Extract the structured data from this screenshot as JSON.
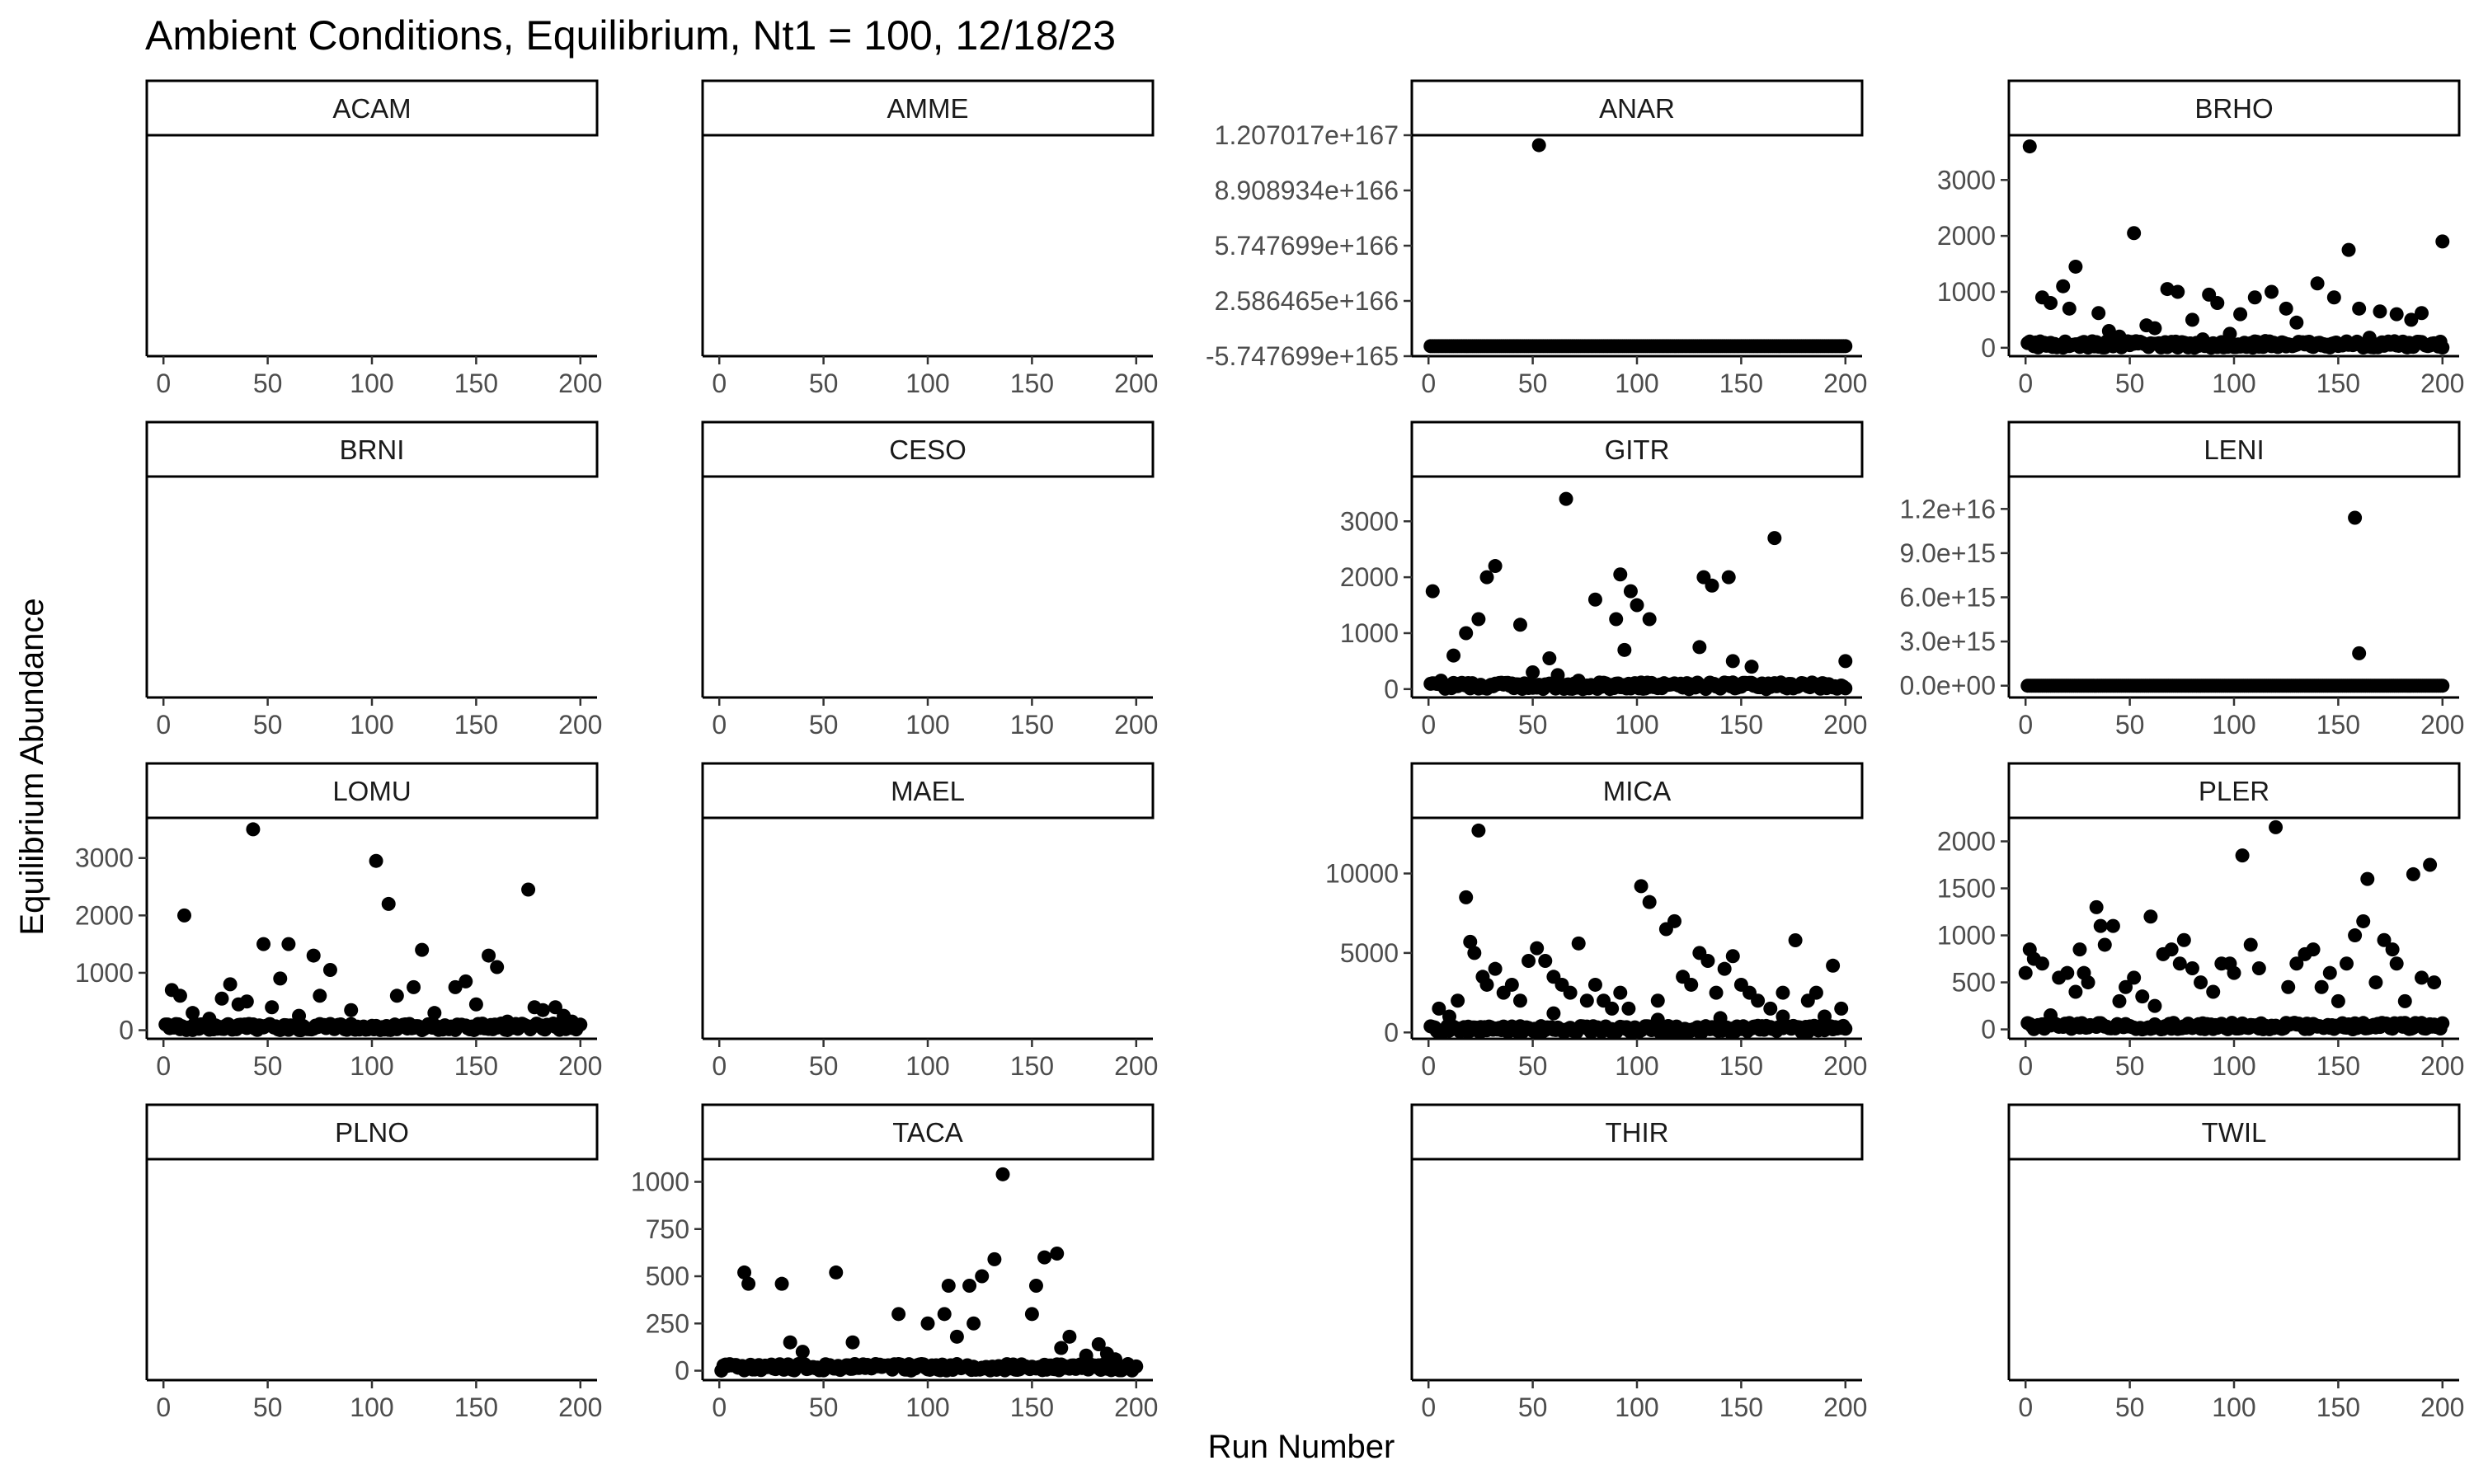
{
  "chart_data": {
    "type": "scatter",
    "title": "Ambient Conditions, Equilibrium, Nt1 = 100, 12/18/23",
    "xlabel": "Run Number",
    "ylabel": "Equilibrium Abundance",
    "xlim": [
      -8,
      208
    ],
    "x_ticks": [
      0,
      50,
      100,
      150,
      200
    ],
    "x_tick_labels": [
      "0",
      "50",
      "100",
      "150",
      "200"
    ],
    "layout": "4x4 facet grid, free y scales",
    "panels": [
      {
        "id": "ACAM",
        "label": "ACAM",
        "row": 0,
        "col": 0,
        "empty": true
      },
      {
        "id": "AMME",
        "label": "AMME",
        "row": 0,
        "col": 1,
        "empty": true
      },
      {
        "id": "ANAR",
        "label": "ANAR",
        "row": 0,
        "col": 2,
        "empty": false,
        "ylim": [
          -5.747699e+165,
          1.207017e+167
        ],
        "y_ticks": [
          -5.747699e+165,
          2.586465e+166,
          5.747699e+166,
          8.908934e+166,
          1.207017e+167
        ],
        "y_tick_labels": [
          "-5.747699e+165",
          "2.586465e+166",
          "5.747699e+166",
          "8.908934e+166",
          "1.207017e+167"
        ],
        "baseline": 0,
        "outliers": [
          [
            53,
            1.15e+167
          ]
        ]
      },
      {
        "id": "BRHO",
        "label": "BRHO",
        "row": 0,
        "col": 3,
        "empty": false,
        "ylim": [
          -150,
          3800
        ],
        "y_ticks": [
          0,
          1000,
          2000,
          3000
        ],
        "y_tick_labels": [
          "0",
          "1000",
          "2000",
          "3000"
        ],
        "baseline": 0,
        "outliers": [
          [
            2,
            3600
          ],
          [
            8,
            900
          ],
          [
            12,
            800
          ],
          [
            18,
            1100
          ],
          [
            21,
            700
          ],
          [
            24,
            1450
          ],
          [
            35,
            620
          ],
          [
            40,
            300
          ],
          [
            52,
            2050
          ],
          [
            58,
            400
          ],
          [
            62,
            350
          ],
          [
            68,
            1050
          ],
          [
            73,
            1000
          ],
          [
            80,
            500
          ],
          [
            88,
            950
          ],
          [
            92,
            800
          ],
          [
            98,
            250
          ],
          [
            103,
            600
          ],
          [
            110,
            900
          ],
          [
            118,
            1000
          ],
          [
            125,
            700
          ],
          [
            130,
            450
          ],
          [
            140,
            1150
          ],
          [
            148,
            900
          ],
          [
            155,
            1750
          ],
          [
            160,
            700
          ],
          [
            170,
            650
          ],
          [
            178,
            600
          ],
          [
            185,
            500
          ],
          [
            190,
            620
          ],
          [
            200,
            1900
          ],
          [
            45,
            200
          ],
          [
            85,
            150
          ],
          [
            115,
            120
          ],
          [
            165,
            180
          ]
        ]
      },
      {
        "id": "BRNI",
        "label": "BRNI",
        "row": 1,
        "col": 0,
        "empty": true
      },
      {
        "id": "CESO",
        "label": "CESO",
        "row": 1,
        "col": 1,
        "empty": true
      },
      {
        "id": "GITR",
        "label": "GITR",
        "row": 1,
        "col": 2,
        "empty": false,
        "ylim": [
          -150,
          3800
        ],
        "y_ticks": [
          0,
          1000,
          2000,
          3000
        ],
        "y_tick_labels": [
          "0",
          "1000",
          "2000",
          "3000"
        ],
        "baseline": 0,
        "outliers": [
          [
            2,
            1750
          ],
          [
            6,
            150
          ],
          [
            12,
            600
          ],
          [
            18,
            1000
          ],
          [
            24,
            1250
          ],
          [
            28,
            2000
          ],
          [
            32,
            2200
          ],
          [
            44,
            1150
          ],
          [
            50,
            300
          ],
          [
            58,
            550
          ],
          [
            62,
            250
          ],
          [
            66,
            3400
          ],
          [
            72,
            150
          ],
          [
            80,
            1600
          ],
          [
            90,
            1250
          ],
          [
            92,
            2050
          ],
          [
            94,
            700
          ],
          [
            97,
            1750
          ],
          [
            100,
            1500
          ],
          [
            106,
            1250
          ],
          [
            130,
            750
          ],
          [
            132,
            2000
          ],
          [
            136,
            1850
          ],
          [
            144,
            2000
          ],
          [
            146,
            500
          ],
          [
            155,
            400
          ],
          [
            166,
            2700
          ],
          [
            200,
            500
          ],
          [
            40,
            100
          ],
          [
            120,
            80
          ]
        ]
      },
      {
        "id": "LENI",
        "label": "LENI",
        "row": 1,
        "col": 3,
        "empty": false,
        "ylim": [
          -800000000000000.0,
          1.42e+16
        ],
        "y_ticks": [
          0,
          3000000000000000.0,
          6000000000000000.0,
          9000000000000000.0,
          1.2e+16
        ],
        "y_tick_labels": [
          "0.0e+00",
          "3.0e+15",
          "6.0e+15",
          "9.0e+15",
          "1.2e+16"
        ],
        "baseline": 0,
        "outliers": [
          [
            158,
            1.14e+16
          ],
          [
            160,
            2200000000000000.0
          ]
        ]
      },
      {
        "id": "LOMU",
        "label": "LOMU",
        "row": 2,
        "col": 0,
        "empty": false,
        "ylim": [
          -150,
          3700
        ],
        "y_ticks": [
          0,
          1000,
          2000,
          3000
        ],
        "y_tick_labels": [
          "0",
          "1000",
          "2000",
          "3000"
        ],
        "baseline": 0,
        "outliers": [
          [
            4,
            700
          ],
          [
            8,
            600
          ],
          [
            10,
            2000
          ],
          [
            14,
            300
          ],
          [
            22,
            200
          ],
          [
            28,
            550
          ],
          [
            32,
            800
          ],
          [
            36,
            450
          ],
          [
            40,
            500
          ],
          [
            43,
            3500
          ],
          [
            48,
            1500
          ],
          [
            52,
            400
          ],
          [
            56,
            900
          ],
          [
            60,
            1500
          ],
          [
            65,
            250
          ],
          [
            72,
            1300
          ],
          [
            75,
            600
          ],
          [
            80,
            1050
          ],
          [
            90,
            350
          ],
          [
            102,
            2950
          ],
          [
            108,
            2200
          ],
          [
            112,
            600
          ],
          [
            120,
            750
          ],
          [
            124,
            1400
          ],
          [
            130,
            300
          ],
          [
            140,
            750
          ],
          [
            145,
            850
          ],
          [
            150,
            450
          ],
          [
            156,
            1300
          ],
          [
            160,
            1100
          ],
          [
            165,
            150
          ],
          [
            175,
            2450
          ],
          [
            178,
            400
          ],
          [
            182,
            350
          ],
          [
            188,
            400
          ],
          [
            192,
            250
          ],
          [
            196,
            150
          ]
        ]
      },
      {
        "id": "MAEL",
        "label": "MAEL",
        "row": 2,
        "col": 1,
        "empty": true
      },
      {
        "id": "MICA",
        "label": "MICA",
        "row": 2,
        "col": 2,
        "empty": false,
        "ylim": [
          -400,
          13500
        ],
        "y_ticks": [
          0,
          5000,
          10000
        ],
        "y_tick_labels": [
          "0",
          "5000",
          "10000"
        ],
        "baseline": 0,
        "outliers": [
          [
            5,
            1500
          ],
          [
            10,
            1000
          ],
          [
            14,
            2000
          ],
          [
            18,
            8500
          ],
          [
            20,
            5700
          ],
          [
            22,
            5000
          ],
          [
            24,
            12700
          ],
          [
            26,
            3500
          ],
          [
            28,
            3000
          ],
          [
            32,
            4000
          ],
          [
            36,
            2500
          ],
          [
            40,
            3000
          ],
          [
            44,
            2000
          ],
          [
            48,
            4500
          ],
          [
            52,
            5300
          ],
          [
            56,
            4500
          ],
          [
            60,
            3500
          ],
          [
            64,
            3000
          ],
          [
            68,
            2500
          ],
          [
            72,
            5600
          ],
          [
            76,
            2000
          ],
          [
            80,
            3000
          ],
          [
            84,
            2000
          ],
          [
            88,
            1500
          ],
          [
            92,
            2500
          ],
          [
            96,
            1500
          ],
          [
            102,
            9200
          ],
          [
            106,
            8200
          ],
          [
            110,
            2000
          ],
          [
            114,
            6500
          ],
          [
            118,
            7000
          ],
          [
            122,
            3500
          ],
          [
            126,
            3000
          ],
          [
            130,
            5000
          ],
          [
            134,
            4500
          ],
          [
            138,
            2500
          ],
          [
            142,
            4000
          ],
          [
            146,
            4800
          ],
          [
            150,
            3000
          ],
          [
            154,
            2500
          ],
          [
            158,
            2000
          ],
          [
            164,
            1500
          ],
          [
            170,
            1000
          ],
          [
            176,
            5800
          ],
          [
            182,
            2000
          ],
          [
            186,
            2500
          ],
          [
            190,
            1000
          ],
          [
            194,
            4200
          ],
          [
            198,
            1500
          ],
          [
            60,
            1200
          ],
          [
            110,
            800
          ],
          [
            140,
            900
          ],
          [
            170,
            2500
          ]
        ]
      },
      {
        "id": "PLER",
        "label": "PLER",
        "row": 2,
        "col": 3,
        "empty": false,
        "ylim": [
          -100,
          2250
        ],
        "y_ticks": [
          0,
          500,
          1000,
          1500,
          2000
        ],
        "y_tick_labels": [
          "0",
          "500",
          "1000",
          "1500",
          "2000"
        ],
        "baseline": 0,
        "outliers": [
          [
            0,
            600
          ],
          [
            2,
            850
          ],
          [
            4,
            750
          ],
          [
            8,
            700
          ],
          [
            12,
            150
          ],
          [
            16,
            550
          ],
          [
            20,
            600
          ],
          [
            24,
            400
          ],
          [
            26,
            850
          ],
          [
            28,
            600
          ],
          [
            30,
            500
          ],
          [
            34,
            1300
          ],
          [
            36,
            1100
          ],
          [
            38,
            900
          ],
          [
            42,
            1100
          ],
          [
            45,
            300
          ],
          [
            48,
            450
          ],
          [
            52,
            550
          ],
          [
            56,
            350
          ],
          [
            60,
            1200
          ],
          [
            62,
            250
          ],
          [
            66,
            800
          ],
          [
            70,
            850
          ],
          [
            74,
            700
          ],
          [
            76,
            950
          ],
          [
            80,
            650
          ],
          [
            84,
            500
          ],
          [
            90,
            400
          ],
          [
            94,
            700
          ],
          [
            98,
            700
          ],
          [
            100,
            600
          ],
          [
            104,
            1850
          ],
          [
            108,
            900
          ],
          [
            112,
            650
          ],
          [
            120,
            2150
          ],
          [
            126,
            450
          ],
          [
            130,
            700
          ],
          [
            134,
            800
          ],
          [
            138,
            850
          ],
          [
            142,
            450
          ],
          [
            146,
            600
          ],
          [
            150,
            300
          ],
          [
            154,
            700
          ],
          [
            158,
            1000
          ],
          [
            162,
            1150
          ],
          [
            164,
            1600
          ],
          [
            168,
            500
          ],
          [
            172,
            950
          ],
          [
            176,
            850
          ],
          [
            178,
            700
          ],
          [
            182,
            300
          ],
          [
            186,
            1650
          ],
          [
            190,
            550
          ],
          [
            194,
            1750
          ],
          [
            196,
            500
          ]
        ]
      },
      {
        "id": "PLNO",
        "label": "PLNO",
        "row": 3,
        "col": 0,
        "empty": true
      },
      {
        "id": "TACA",
        "label": "TACA",
        "row": 3,
        "col": 1,
        "empty": false,
        "ylim": [
          -50,
          1120
        ],
        "y_ticks": [
          0,
          250,
          500,
          750,
          1000
        ],
        "y_tick_labels": [
          "0",
          "250",
          "500",
          "750",
          "1000"
        ],
        "baseline": 0,
        "outliers": [
          [
            12,
            520
          ],
          [
            14,
            460
          ],
          [
            30,
            460
          ],
          [
            34,
            150
          ],
          [
            40,
            100
          ],
          [
            56,
            520
          ],
          [
            64,
            150
          ],
          [
            86,
            300
          ],
          [
            100,
            250
          ],
          [
            108,
            300
          ],
          [
            110,
            450
          ],
          [
            114,
            180
          ],
          [
            120,
            450
          ],
          [
            122,
            250
          ],
          [
            126,
            500
          ],
          [
            132,
            590
          ],
          [
            136,
            1040
          ],
          [
            150,
            300
          ],
          [
            152,
            450
          ],
          [
            156,
            600
          ],
          [
            162,
            620
          ],
          [
            164,
            120
          ],
          [
            168,
            180
          ],
          [
            176,
            80
          ],
          [
            182,
            140
          ],
          [
            186,
            90
          ],
          [
            190,
            60
          ]
        ]
      },
      {
        "id": "THIR",
        "label": "THIR",
        "row": 3,
        "col": 2,
        "empty": true
      },
      {
        "id": "TWIL",
        "label": "TWIL",
        "row": 3,
        "col": 3,
        "empty": true
      }
    ]
  }
}
